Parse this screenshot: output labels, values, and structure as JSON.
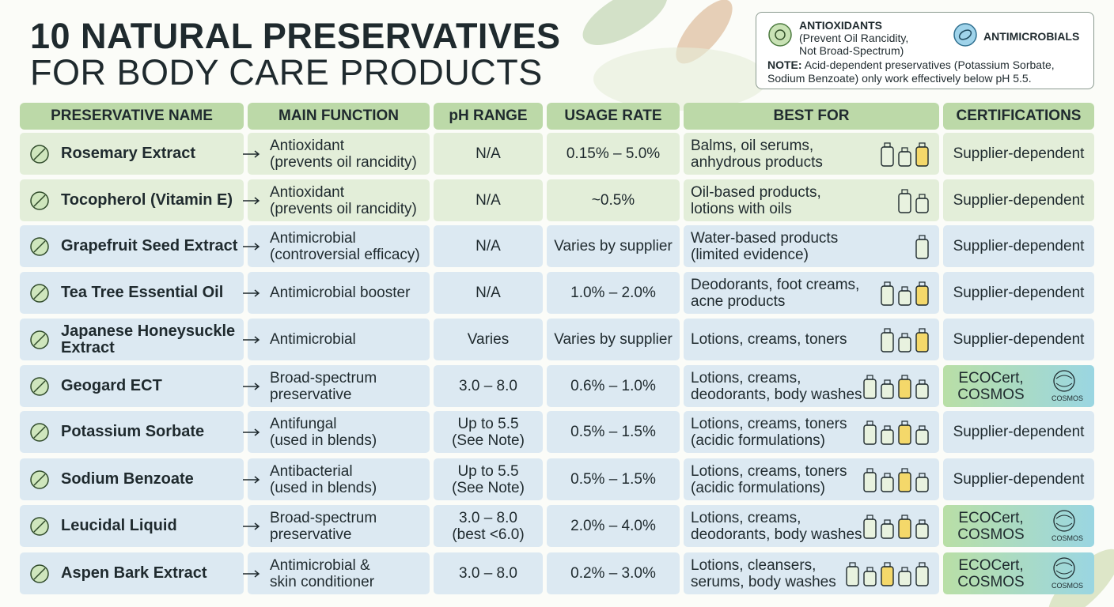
{
  "header": {
    "title_line1": "10 NATURAL PRESERVATIVES",
    "title_line2": "FOR BODY CARE PRODUCTS"
  },
  "legend": {
    "antioxidants": {
      "label": "ANTIOXIDANTS",
      "detail": [
        "(Prevent Oil Rancidity,",
        "Not Broad-Spectrum)"
      ]
    },
    "antimicrobials": {
      "label": "ANTIMICROBIALS"
    },
    "note": {
      "label": "NOTE:",
      "text": [
        "Acid-dependent preservatives (Potassium Sorbate,",
        "Sodium Benzoate) only work effectively below pH 5.5."
      ]
    }
  },
  "table": {
    "columns": [
      "PRESERVATIVE NAME",
      "MAIN FUNCTION",
      "pH RANGE",
      "USAGE RATE",
      "BEST FOR",
      "CERTIFICATIONS"
    ],
    "logo_text": "COSMOS",
    "rows": [
      {
        "name": [
          "Rosemary Extract"
        ],
        "function": [
          "Antioxidant",
          "(prevents oil rancidity)"
        ],
        "ph": [
          "N/A"
        ],
        "usage": "0.15% – 5.0%",
        "best_for": [
          "Balms, oil serums,",
          "anhydrous products"
        ],
        "certifications": [
          "Supplier-dependent"
        ]
      },
      {
        "name": [
          "Tocopherol (Vitamin E)"
        ],
        "function": [
          "Antioxidant",
          "(prevents oil rancidity)"
        ],
        "ph": [
          "N/A"
        ],
        "usage": "~0.5%",
        "best_for": [
          "Oil-based products,",
          "lotions with oils"
        ],
        "certifications": [
          "Supplier-dependent"
        ]
      },
      {
        "name": [
          "Grapefruit Seed Extract"
        ],
        "function": [
          "Antimicrobial",
          "(controversial efficacy)"
        ],
        "ph": [
          "N/A"
        ],
        "usage": "Varies by supplier",
        "best_for": [
          "Water-based products",
          "(limited evidence)"
        ],
        "certifications": [
          "Supplier-dependent"
        ]
      },
      {
        "name": [
          "Tea Tree Essential Oil"
        ],
        "function": [
          "Antimicrobial booster"
        ],
        "ph": [
          "N/A"
        ],
        "usage": "1.0% – 2.0%",
        "best_for": [
          "Deodorants, foot creams,",
          "acne products"
        ],
        "certifications": [
          "Supplier-dependent"
        ]
      },
      {
        "name": [
          "Japanese Honeysuckle",
          "Extract"
        ],
        "function": [
          "Antimicrobial"
        ],
        "ph": [
          "Varies"
        ],
        "usage": "Varies by supplier",
        "best_for": [
          "Lotions, creams, toners"
        ],
        "certifications": [
          "Supplier-dependent"
        ]
      },
      {
        "name": [
          "Geogard ECT"
        ],
        "function": [
          "Broad-spectrum",
          "preservative"
        ],
        "ph": [
          "3.0 – 8.0"
        ],
        "usage": "0.6% – 1.0%",
        "best_for": [
          "Lotions, creams,",
          "deodorants, body washes"
        ],
        "certifications": [
          "ECOCert,",
          "COSMOS"
        ]
      },
      {
        "name": [
          "Potassium Sorbate"
        ],
        "function": [
          "Antifungal",
          "(used in blends)"
        ],
        "ph": [
          "Up to 5.5",
          "(See Note)"
        ],
        "usage": "0.5% – 1.5%",
        "best_for": [
          "Lotions, creams, toners",
          "(acidic formulations)"
        ],
        "certifications": [
          "Supplier-dependent"
        ]
      },
      {
        "name": [
          "Sodium Benzoate"
        ],
        "function": [
          "Antibacterial",
          "(used in blends)"
        ],
        "ph": [
          "Up to 5.5",
          "(See Note)"
        ],
        "usage": "0.5% – 1.5%",
        "best_for": [
          "Lotions, creams, toners",
          "(acidic formulations)"
        ],
        "certifications": [
          "Supplier-dependent"
        ]
      },
      {
        "name": [
          "Leucidal Liquid"
        ],
        "function": [
          "Broad-spectrum",
          "preservative"
        ],
        "ph": [
          "3.0 – 8.0",
          "(best <6.0)"
        ],
        "usage": "2.0% – 4.0%",
        "best_for": [
          "Lotions, creams,",
          "deodorants, body washes"
        ],
        "certifications": [
          "ECOCert,",
          "COSMOS"
        ]
      },
      {
        "name": [
          "Aspen Bark Extract"
        ],
        "function": [
          "Antimicrobial &",
          "skin conditioner"
        ],
        "ph": [
          "3.0 – 8.0"
        ],
        "usage": "0.2% – 3.0%",
        "best_for": [
          "Lotions, cleansers,",
          "serums, body washes"
        ],
        "certifications": [
          "ECOCert,",
          "COSMOS"
        ]
      }
    ]
  }
}
